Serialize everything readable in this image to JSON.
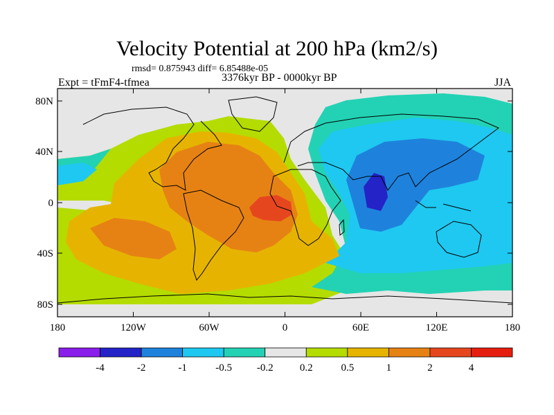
{
  "header": {
    "title": "Velocity Potential at 200 hPa (km2/s)",
    "stats": "rmsd= 0.875943 diff= 6.85488e-05",
    "experiment": "Expt = tFmF4-tfmea",
    "period": "3376kyr BP - 0000kyr BP",
    "season": "JJA"
  },
  "axes": {
    "lat_labels": [
      "80N",
      "40N",
      "0",
      "40S",
      "80S"
    ],
    "lon_labels": [
      "180",
      "120W",
      "60W",
      "0",
      "60E",
      "120E",
      "180"
    ]
  },
  "colorbar": {
    "boundaries": [
      "-4",
      "-2",
      "-1",
      "-0.5",
      "-0.2",
      "0.2",
      "0.5",
      "1",
      "2",
      "4"
    ],
    "colors": [
      "#8a1eea",
      "#2323c8",
      "#1e82dc",
      "#1ec8f0",
      "#23d2b4",
      "#e6e6e6",
      "#b4dc00",
      "#e6b400",
      "#e68214",
      "#e6461e",
      "#e61e0f"
    ]
  }
}
